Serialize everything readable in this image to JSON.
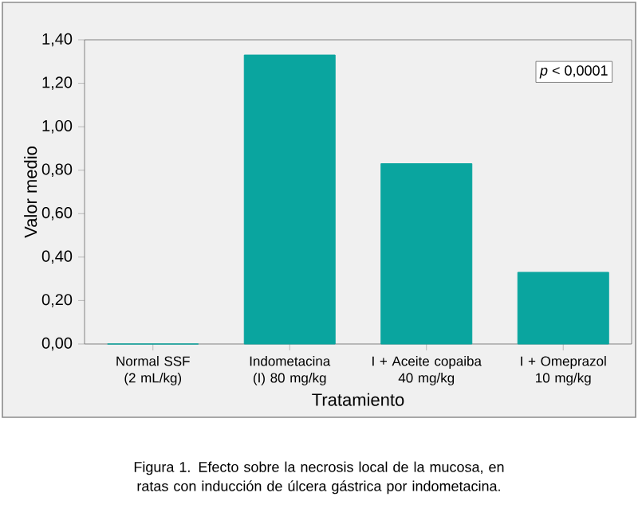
{
  "chart_data": {
    "type": "bar",
    "categories": [
      "Normal SSF (2 mL/kg)",
      "Indometacina (I) 80 mg/kg",
      "I + Aceite copaiba 40 mg/kg",
      "I + Omeprazol 10 mg/kg"
    ],
    "values": [
      0,
      1.33,
      0.83,
      0.33
    ],
    "color": "#0aa59f",
    "xlabel": "Tratamiento",
    "ylabel": "Valor medio",
    "ylim": [
      0,
      1.4
    ],
    "yticks": [
      {
        "value": 0,
        "label": "0,00"
      },
      {
        "value": 0.2,
        "label": "0,20"
      },
      {
        "value": 0.4,
        "label": "0,40"
      },
      {
        "value": 0.6,
        "label": "0,60"
      },
      {
        "value": 0.8,
        "label": "0,80"
      },
      {
        "value": 1.0,
        "label": "1,00"
      },
      {
        "value": 1.2,
        "label": "1,20"
      },
      {
        "value": 1.4,
        "label": "1,40"
      }
    ],
    "grid": false,
    "annotations": [
      "*p* < 0,0001",
      "Figura 1. Efecto sobre la necrosis local de la mucosa, en ratas con inducción de úlcera gástrica por indometacina."
    ]
  }
}
